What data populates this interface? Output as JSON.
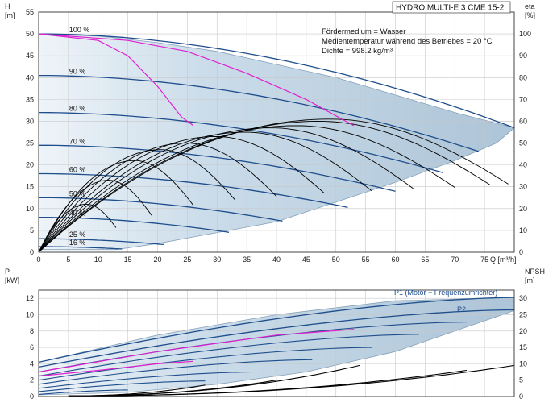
{
  "title": "HYDRO MULTI-E 3 CME 15-2",
  "info_lines": [
    "Fördermedium = Wasser",
    "Medientemperatur während des Betriebes = 20 °C",
    "Dichte = 998.2 kg/m³"
  ],
  "colors": {
    "envelope_fill": "#b9cfe0",
    "curve_dark_blue": "#1f4e8c",
    "efficiency_black": "#000000",
    "system_magenta": "#e020d0",
    "grid": "#c8c8c8"
  },
  "chart_data": [
    {
      "type": "line",
      "panel": "H",
      "ylabel": "H\n[m]",
      "y2label": "eta\n[%]",
      "xlabel": "Q [m³/h]",
      "xlim": [
        0,
        80
      ],
      "ylim": [
        0,
        55
      ],
      "y2lim": [
        0,
        110
      ],
      "x_ticks": [
        0,
        5,
        10,
        15,
        20,
        25,
        30,
        35,
        40,
        45,
        50,
        55,
        60,
        65,
        70,
        75
      ],
      "y_ticks": [
        0,
        5,
        10,
        15,
        20,
        25,
        30,
        35,
        40,
        45,
        50,
        55
      ],
      "y2_ticks": [
        0,
        10,
        20,
        30,
        40,
        50,
        60,
        70,
        80,
        90,
        100
      ],
      "grid": true,
      "speed_labels": [
        {
          "label": "100 %",
          "q": 5,
          "h": 50
        },
        {
          "label": "90 %",
          "q": 5,
          "h": 40.5
        },
        {
          "label": "80 %",
          "q": 5,
          "h": 32
        },
        {
          "label": "70 %",
          "q": 5,
          "h": 24.5
        },
        {
          "label": "60 %",
          "q": 5,
          "h": 18
        },
        {
          "label": "50 %",
          "q": 5,
          "h": 12.5
        },
        {
          "label": "40 %",
          "q": 5,
          "h": 8
        },
        {
          "label": "25 %",
          "q": 5,
          "h": 3.1
        },
        {
          "label": "16 %",
          "q": 5,
          "h": 1.3
        }
      ],
      "envelope": [
        [
          0,
          50
        ],
        [
          10,
          49.5
        ],
        [
          20,
          48
        ],
        [
          30,
          46
        ],
        [
          40,
          43
        ],
        [
          50,
          40
        ],
        [
          60,
          36
        ],
        [
          70,
          32
        ],
        [
          80,
          28.5
        ],
        [
          77,
          25
        ],
        [
          70,
          21
        ],
        [
          60,
          16
        ],
        [
          50,
          11.5
        ],
        [
          40,
          7
        ],
        [
          30,
          4.5
        ],
        [
          20,
          2
        ],
        [
          13,
          0.6
        ],
        [
          5,
          0.6
        ],
        [
          0,
          0.6
        ],
        [
          0,
          50
        ]
      ],
      "series": [
        {
          "q_max": 80,
          "h0": 50
        },
        {
          "q_max": 74,
          "h0": 40.5
        },
        {
          "q_max": 68,
          "h0": 32
        },
        {
          "q_max": 60,
          "h0": 24.5
        },
        {
          "q_max": 52,
          "h0": 18
        },
        {
          "q_max": 41,
          "h0": 12.5
        },
        {
          "q_max": 32,
          "h0": 8
        },
        {
          "q_max": 21,
          "h0": 3.1
        },
        {
          "q_max": 14,
          "h0": 1.3
        }
      ],
      "system_curves": [
        [
          [
            0,
            50
          ],
          [
            10,
            48.5
          ],
          [
            15,
            45
          ],
          [
            20,
            38
          ],
          [
            24,
            31
          ],
          [
            26,
            29
          ]
        ],
        [
          [
            0,
            50
          ],
          [
            15,
            48.5
          ],
          [
            25,
            46
          ],
          [
            35,
            41
          ],
          [
            45,
            35
          ],
          [
            53,
            29
          ]
        ]
      ],
      "efficiency_curves": [
        {
          "eta_peak": 61,
          "q_end": 79
        },
        {
          "eta_peak": 60,
          "q_end": 76
        },
        {
          "eta_peak": 58,
          "q_end": 70
        },
        {
          "eta_peak": 57,
          "q_end": 63
        },
        {
          "eta_peak": 55,
          "q_end": 56
        },
        {
          "eta_peak": 53,
          "q_end": 48
        },
        {
          "eta_peak": 50,
          "q_end": 40
        },
        {
          "eta_peak": 47,
          "q_end": 33
        },
        {
          "eta_peak": 42,
          "q_end": 26
        },
        {
          "eta_peak": 33,
          "q_end": 19
        },
        {
          "eta_peak": 22,
          "q_end": 13
        }
      ]
    },
    {
      "type": "line",
      "panel": "P",
      "ylabel": "P\n[kW]",
      "y2label": "NPSH\n[m]",
      "xlim": [
        0,
        80
      ],
      "ylim": [
        0,
        13
      ],
      "y2lim": [
        0,
        32.5
      ],
      "y_ticks": [
        0,
        2,
        4,
        6,
        8,
        10,
        12
      ],
      "y2_ticks": [
        0,
        5,
        10,
        15,
        20,
        25,
        30
      ],
      "grid": true,
      "legend": [
        "P1 (Motor + Frequenzumrichter)",
        "P2"
      ],
      "envelope": [
        [
          0,
          4.2
        ],
        [
          20,
          7.5
        ],
        [
          40,
          10
        ],
        [
          60,
          11.7
        ],
        [
          80,
          12.1
        ],
        [
          80,
          10.5
        ],
        [
          70,
          8
        ],
        [
          60,
          5.5
        ],
        [
          45,
          3
        ],
        [
          30,
          1.5
        ],
        [
          15,
          0.5
        ],
        [
          0,
          0.2
        ],
        [
          0,
          4.2
        ]
      ],
      "power_series": [
        {
          "name": "P1 (Motor + Frequenzumrichter)",
          "p0": 4.2,
          "p_end": 12.1,
          "q_end": 80
        },
        {
          "name": "P2",
          "p0": 3.6,
          "p_end": 10.6,
          "q_end": 80
        },
        {
          "p0": 3.0,
          "p_end": 9.1,
          "q_end": 72
        },
        {
          "p0": 2.5,
          "p_end": 7.6,
          "q_end": 64
        },
        {
          "p0": 2.0,
          "p_end": 6.0,
          "q_end": 56
        },
        {
          "p0": 1.5,
          "p_end": 4.5,
          "q_end": 46
        },
        {
          "p0": 1.0,
          "p_end": 3.0,
          "q_end": 36
        },
        {
          "p0": 0.6,
          "p_end": 1.9,
          "q_end": 28
        },
        {
          "p0": 0.25,
          "p_end": 0.8,
          "q_end": 15
        }
      ],
      "system_power": [
        [
          [
            0,
            2.5
          ],
          [
            10,
            3.2
          ],
          [
            20,
            4.0
          ],
          [
            26,
            4.3
          ]
        ],
        [
          [
            0,
            3.0
          ],
          [
            20,
            5.5
          ],
          [
            40,
            7.5
          ],
          [
            53,
            8.2
          ]
        ]
      ],
      "npsh_curves": [
        {
          "q_start": 5,
          "q_end": 80,
          "npsh_end": 9.5
        },
        {
          "q_start": 5,
          "q_end": 72,
          "npsh_end": 8
        },
        {
          "q_start": 5,
          "q_end": 54,
          "npsh_end": 9.5
        },
        {
          "q_start": 5,
          "q_end": 40,
          "npsh_end": 5
        },
        {
          "q_start": 5,
          "q_end": 28,
          "npsh_end": 3.5
        }
      ]
    }
  ]
}
